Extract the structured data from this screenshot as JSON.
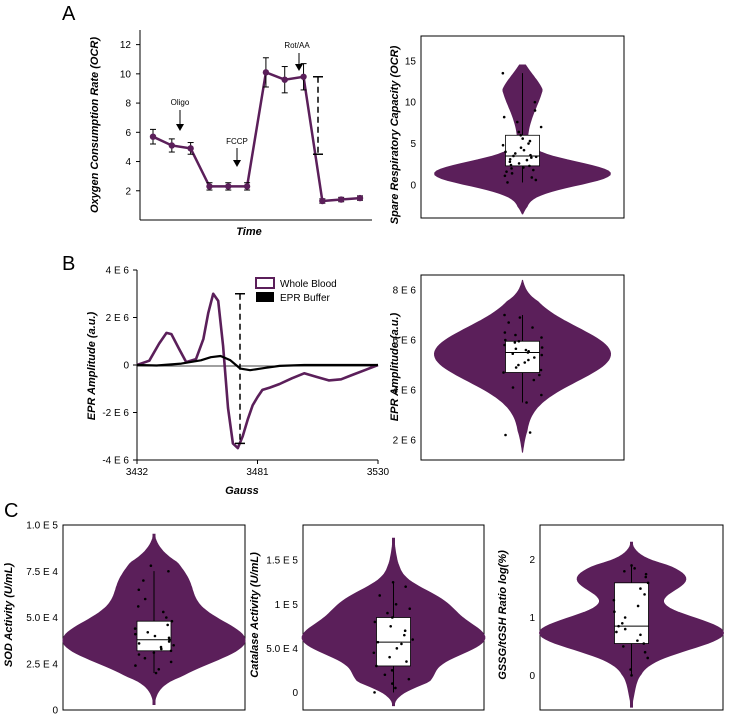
{
  "colors": {
    "purple": "#5b1f5a",
    "black": "#000000",
    "box": "#ffffff"
  },
  "panel_labels": [
    "A",
    "B",
    "C"
  ],
  "chart_data": [
    {
      "id": "ocr-line",
      "type": "line",
      "title": "",
      "xlabel": "Time",
      "ylabel": "Oxygen Consumption Rate (OCR)",
      "ylim": [
        0,
        13
      ],
      "yticks": [
        "12",
        "10",
        "8",
        "6",
        "4",
        "2"
      ],
      "x": [
        1,
        2,
        3,
        4,
        5,
        6,
        7,
        8,
        9,
        10,
        11,
        12
      ],
      "y": [
        5.7,
        5.1,
        4.9,
        2.3,
        2.3,
        2.3,
        10.1,
        9.6,
        9.8,
        1.3,
        1.4,
        1.5
      ],
      "err": [
        0.5,
        0.45,
        0.4,
        0.25,
        0.25,
        0.25,
        1.0,
        0.9,
        0.9,
        0.15,
        0.15,
        0.15
      ],
      "annotations": [
        "Oligo",
        "FCCP",
        "Rot/AA"
      ],
      "bracket": [
        4.5,
        9.8
      ]
    },
    {
      "id": "src-violin",
      "type": "violin",
      "ylabel": "Spare Respiratory Capacity (OCR)",
      "ylim": [
        -4,
        18
      ],
      "yticks": [
        "15",
        "10",
        "5",
        "0"
      ],
      "box": {
        "q1": 2.3,
        "median": 3.5,
        "q3": 6.0,
        "whisker_low": 0.3,
        "whisker_high": 13.5
      },
      "points": [
        0.3,
        0.6,
        0.9,
        1.1,
        1.4,
        1.6,
        1.8,
        2.0,
        2.1,
        2.3,
        2.4,
        2.6,
        2.8,
        3.0,
        3.1,
        3.3,
        3.4,
        3.5,
        3.6,
        3.8,
        4.0,
        4.2,
        4.5,
        4.8,
        5.0,
        5.3,
        5.6,
        6.0,
        6.4,
        7.0,
        7.6,
        8.2,
        9.0,
        10.0,
        13.5
      ]
    },
    {
      "id": "epr-line",
      "type": "line",
      "xlabel": "Gauss",
      "ylabel": "EPR Amplitude (a.u.)",
      "xlim": [
        3432,
        3530
      ],
      "ylim": [
        -4000000,
        4000000
      ],
      "xticks": [
        "3432",
        "3481",
        "3530"
      ],
      "yticks": [
        "4 E 6",
        "2 E 6",
        "0",
        "-2 E 6",
        "-4 E 6"
      ],
      "series": [
        {
          "name": "Whole Blood",
          "x": [
            3432,
            3437,
            3441,
            3444,
            3446,
            3449,
            3452,
            3456,
            3459,
            3461,
            3463,
            3465,
            3467,
            3469,
            3471,
            3473,
            3475,
            3477,
            3479,
            3481,
            3483,
            3486,
            3490,
            3495,
            3500,
            3505,
            3510,
            3515,
            3520,
            3525,
            3530
          ],
          "y": [
            0,
            180000,
            900000,
            1350000,
            1300000,
            700000,
            120000,
            250000,
            1100000,
            2200000,
            3000000,
            2700000,
            800000,
            -1800000,
            -3300000,
            -3500000,
            -3000000,
            -2300000,
            -1700000,
            -1350000,
            -1050000,
            -950000,
            -800000,
            -560000,
            -350000,
            -500000,
            -650000,
            -600000,
            -400000,
            -200000,
            0
          ]
        },
        {
          "name": "EPR Buffer",
          "x": [
            3432,
            3440,
            3450,
            3458,
            3462,
            3466,
            3470,
            3474,
            3478,
            3484,
            3490,
            3500,
            3515,
            3530
          ],
          "y": [
            0,
            -20000,
            60000,
            200000,
            330000,
            380000,
            200000,
            -150000,
            -220000,
            -120000,
            -40000,
            0,
            0,
            0
          ]
        }
      ],
      "bracket": [
        -3300000,
        3000000
      ]
    },
    {
      "id": "epr-violin",
      "type": "violin",
      "ylabel": "EPR Amplitude (a.u.)",
      "ylim": [
        1200000,
        8600000
      ],
      "yticks": [
        "8 E 6",
        "6 E 6",
        "4 E 6",
        "2 E 6"
      ],
      "box": {
        "q1": 4700000,
        "median": 5500000,
        "q3": 5950000,
        "whisker_low": 3500000,
        "whisker_high": 7000000
      },
      "points": [
        2200000,
        2300000,
        3500000,
        3800000,
        4100000,
        4400000,
        4600000,
        4700000,
        4800000,
        4900000,
        5000000,
        5100000,
        5200000,
        5300000,
        5400000,
        5450000,
        5500000,
        5550000,
        5600000,
        5650000,
        5700000,
        5800000,
        5900000,
        5950000,
        6000000,
        6100000,
        6200000,
        6300000,
        6500000,
        6700000,
        6900000,
        7000000
      ]
    },
    {
      "id": "sod-violin",
      "type": "violin",
      "ylabel": "SOD Activity (U/mL)",
      "ylim": [
        0,
        100000
      ],
      "yticks": [
        "1.0 E 5",
        "7.5 E 4",
        "5.0 E 4",
        "2.5 E 4",
        "0"
      ],
      "box": {
        "q1": 32000,
        "median": 38000,
        "q3": 48000,
        "whisker_low": 20000,
        "whisker_high": 75000
      },
      "points": [
        20000,
        22000,
        24000,
        26000,
        28000,
        30000,
        31000,
        32000,
        33000,
        34000,
        35000,
        36000,
        37000,
        38000,
        39000,
        40000,
        41000,
        42000,
        44000,
        46000,
        48000,
        50000,
        53000,
        56000,
        60000,
        65000,
        70000,
        75000,
        78000
      ]
    },
    {
      "id": "catalase-violin",
      "type": "violin",
      "ylabel": "Catalase Activity (U/mL)",
      "ylim": [
        -20000,
        190000
      ],
      "yticks": [
        "1.5 E 5",
        "1 E 5",
        "5.0 E 4",
        "0"
      ],
      "box": {
        "q1": 30000,
        "median": 57000,
        "q3": 85000,
        "whisker_low": 0,
        "whisker_high": 125000
      },
      "points": [
        0,
        5000,
        10000,
        15000,
        20000,
        25000,
        30000,
        35000,
        40000,
        45000,
        50000,
        55000,
        57000,
        60000,
        65000,
        70000,
        75000,
        80000,
        85000,
        90000,
        95000,
        100000,
        110000,
        120000,
        125000
      ]
    },
    {
      "id": "gssg-violin",
      "type": "violin",
      "ylabel": "GSSG/tGSH Ratio log(%)",
      "ylim": [
        -0.6,
        2.6
      ],
      "yticks": [
        "2",
        "1",
        "0"
      ],
      "box": {
        "q1": 0.55,
        "median": 0.85,
        "q3": 1.6,
        "whisker_low": 0.0,
        "whisker_high": 1.9
      },
      "points": [
        0.0,
        0.1,
        0.3,
        0.4,
        0.5,
        0.55,
        0.6,
        0.7,
        0.75,
        0.8,
        0.85,
        0.9,
        1.0,
        1.1,
        1.2,
        1.3,
        1.4,
        1.5,
        1.6,
        1.7,
        1.75,
        1.8,
        1.85,
        1.9
      ]
    }
  ]
}
